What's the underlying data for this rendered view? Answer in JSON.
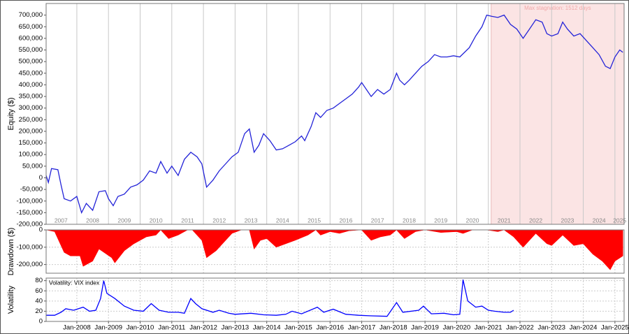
{
  "chart_data": [
    {
      "type": "line",
      "y_label": "Equity ($)",
      "color": "#2323d8",
      "xlim": [
        2007.03,
        2025.29
      ],
      "ylim": [
        -200000,
        750000
      ],
      "highlight": {
        "xlim": [
          2021.09,
          2025.29
        ],
        "label": "Max stagnation: 1512 days",
        "color": "#fbe4e4"
      },
      "xticks": [
        {
          "value": 2007.5,
          "label": "2007"
        },
        {
          "value": 2008.5,
          "label": "2008"
        },
        {
          "value": 2009.5,
          "label": "2009"
        },
        {
          "value": 2010.5,
          "label": "2010"
        },
        {
          "value": 2011.5,
          "label": "2011"
        },
        {
          "value": 2012.5,
          "label": "2012"
        },
        {
          "value": 2013.5,
          "label": "2013"
        },
        {
          "value": 2014.5,
          "label": "2014"
        },
        {
          "value": 2015.5,
          "label": "2015"
        },
        {
          "value": 2016.5,
          "label": "2016"
        },
        {
          "value": 2017.5,
          "label": "2017"
        },
        {
          "value": 2018.5,
          "label": "2018"
        },
        {
          "value": 2019.5,
          "label": "2019"
        },
        {
          "value": 2020.5,
          "label": "2020"
        },
        {
          "value": 2021.5,
          "label": "2021"
        },
        {
          "value": 2022.5,
          "label": "2022"
        },
        {
          "value": 2023.5,
          "label": "2023"
        },
        {
          "value": 2024.5,
          "label": "2024"
        },
        {
          "value": 2025.15,
          "label": "2025"
        }
      ],
      "yticks": [
        {
          "value": -200000,
          "label": "-200,000"
        },
        {
          "value": -150000,
          "label": "-150,000"
        },
        {
          "value": -100000,
          "label": "-100,000"
        },
        {
          "value": -50000,
          "label": "-50,000"
        },
        0,
        {
          "value": 50000,
          "label": "50,000"
        },
        {
          "value": 100000,
          "label": "100,000"
        },
        {
          "value": 150000,
          "label": "150,000"
        },
        {
          "value": 200000,
          "label": "200,000"
        },
        {
          "value": 250000,
          "label": "250,000"
        },
        {
          "value": 300000,
          "label": "300,000"
        },
        {
          "value": 350000,
          "label": "350,000"
        },
        {
          "value": 400000,
          "label": "400,000"
        },
        {
          "value": 450000,
          "label": "450,000"
        },
        {
          "value": 500000,
          "label": "500,000"
        },
        {
          "value": 550000,
          "label": "550,000"
        },
        {
          "value": 600000,
          "label": "600,000"
        },
        {
          "value": 650000,
          "label": "650,000"
        },
        {
          "value": 700000,
          "label": "700,000"
        }
      ],
      "x": [
        2007.03,
        2007.1,
        2007.2,
        2007.4,
        2007.5,
        2007.6,
        2007.8,
        2008.0,
        2008.15,
        2008.3,
        2008.5,
        2008.7,
        2008.9,
        2009.0,
        2009.15,
        2009.3,
        2009.5,
        2009.7,
        2009.9,
        2010.1,
        2010.3,
        2010.5,
        2010.65,
        2010.85,
        2011.0,
        2011.2,
        2011.4,
        2011.6,
        2011.8,
        2011.95,
        2012.1,
        2012.3,
        2012.5,
        2012.7,
        2012.9,
        2013.1,
        2013.3,
        2013.45,
        2013.6,
        2013.75,
        2013.9,
        2014.1,
        2014.3,
        2014.5,
        2014.7,
        2014.9,
        2015.1,
        2015.2,
        2015.4,
        2015.55,
        2015.7,
        2015.9,
        2016.1,
        2016.3,
        2016.5,
        2016.7,
        2016.9,
        2017.0,
        2017.15,
        2017.3,
        2017.5,
        2017.7,
        2017.9,
        2018.1,
        2018.2,
        2018.35,
        2018.5,
        2018.7,
        2018.9,
        2019.1,
        2019.3,
        2019.5,
        2019.7,
        2019.9,
        2020.1,
        2020.25,
        2020.4,
        2020.6,
        2020.8,
        2020.95,
        2021.1,
        2021.3,
        2021.5,
        2021.7,
        2021.9,
        2022.1,
        2022.3,
        2022.5,
        2022.7,
        2022.85,
        2023.0,
        2023.2,
        2023.35,
        2023.5,
        2023.7,
        2023.9,
        2024.1,
        2024.3,
        2024.5,
        2024.7,
        2024.85,
        2025.0,
        2025.15,
        2025.25
      ],
      "values": [
        10000,
        -20000,
        40000,
        35000,
        -30000,
        -90000,
        -100000,
        -80000,
        -150000,
        -110000,
        -140000,
        -60000,
        -55000,
        -90000,
        -120000,
        -80000,
        -70000,
        -40000,
        -30000,
        -10000,
        30000,
        20000,
        70000,
        20000,
        50000,
        10000,
        80000,
        110000,
        90000,
        60000,
        -40000,
        -10000,
        30000,
        60000,
        90000,
        110000,
        190000,
        210000,
        110000,
        140000,
        190000,
        160000,
        120000,
        125000,
        140000,
        155000,
        180000,
        160000,
        220000,
        280000,
        260000,
        290000,
        300000,
        320000,
        340000,
        360000,
        390000,
        410000,
        380000,
        350000,
        380000,
        360000,
        380000,
        450000,
        420000,
        400000,
        420000,
        450000,
        480000,
        500000,
        530000,
        520000,
        520000,
        525000,
        520000,
        540000,
        560000,
        610000,
        650000,
        700000,
        695000,
        690000,
        700000,
        660000,
        640000,
        600000,
        640000,
        680000,
        670000,
        620000,
        610000,
        620000,
        670000,
        640000,
        610000,
        620000,
        590000,
        560000,
        530000,
        480000,
        470000,
        520000,
        550000,
        540000
      ]
    },
    {
      "type": "area",
      "y_label": "Drawdown ($)",
      "color": "#ff0000",
      "xlim": [
        2007.03,
        2025.29
      ],
      "ylim": [
        -250000,
        0
      ],
      "grid": true,
      "yticks": [
        {
          "value": -200000,
          "label": "-200,000"
        },
        {
          "value": -100000,
          "label": "-100,000"
        },
        0
      ],
      "x": [
        2007.03,
        2007.3,
        2007.6,
        2007.8,
        2008.1,
        2008.2,
        2008.5,
        2008.7,
        2009.1,
        2009.2,
        2009.5,
        2009.8,
        2010.2,
        2010.5,
        2010.65,
        2010.9,
        2011.2,
        2011.5,
        2011.65,
        2011.95,
        2012.1,
        2012.4,
        2012.7,
        2012.9,
        2013.2,
        2013.45,
        2013.6,
        2013.8,
        2014.0,
        2014.3,
        2014.6,
        2014.9,
        2015.3,
        2015.55,
        2015.7,
        2016.0,
        2016.3,
        2016.6,
        2017.0,
        2017.3,
        2017.6,
        2017.9,
        2018.1,
        2018.35,
        2018.7,
        2019.0,
        2019.5,
        2020.0,
        2020.2,
        2020.5,
        2020.95,
        2021.3,
        2021.5,
        2021.8,
        2022.1,
        2022.5,
        2022.85,
        2023.0,
        2023.35,
        2023.7,
        2024.0,
        2024.3,
        2024.6,
        2024.85,
        2025.0,
        2025.25
      ],
      "values": [
        0,
        -10000,
        -130000,
        -150000,
        -150000,
        -210000,
        -180000,
        -110000,
        -160000,
        -190000,
        -120000,
        -80000,
        -40000,
        -30000,
        0,
        -50000,
        -30000,
        0,
        0,
        -60000,
        -160000,
        -120000,
        -60000,
        -20000,
        0,
        0,
        -110000,
        -60000,
        -50000,
        -100000,
        -80000,
        -60000,
        -30000,
        0,
        -30000,
        -10000,
        -20000,
        -5000,
        0,
        -60000,
        -40000,
        -30000,
        0,
        -50000,
        -10000,
        0,
        -15000,
        -10000,
        -20000,
        0,
        0,
        -10000,
        0,
        -40000,
        -100000,
        -20000,
        -80000,
        -90000,
        -30000,
        -90000,
        -80000,
        -140000,
        -180000,
        -230000,
        -180000,
        -150000
      ]
    },
    {
      "type": "line",
      "y_label": "Volatility",
      "annotation": "Volatility: VIX index",
      "color": "#0000ff",
      "xlim": [
        2007.03,
        2025.29
      ],
      "ylim": [
        0,
        85
      ],
      "grid": true,
      "yticks": [
        0,
        20,
        40,
        60,
        80
      ],
      "xticks": [
        {
          "value": 2008,
          "label": "Jan-2008"
        },
        {
          "value": 2009,
          "label": "Jan-2009"
        },
        {
          "value": 2010,
          "label": "Jan-2010"
        },
        {
          "value": 2011,
          "label": "Jan-2011"
        },
        {
          "value": 2012,
          "label": "Jan-2012"
        },
        {
          "value": 2013,
          "label": "Jan-2013"
        },
        {
          "value": 2014,
          "label": "Jan-2014"
        },
        {
          "value": 2015,
          "label": "Jan-2015"
        },
        {
          "value": 2016,
          "label": "Jan-2016"
        },
        {
          "value": 2017,
          "label": "Jan-2017"
        },
        {
          "value": 2018,
          "label": "Jan-2018"
        },
        {
          "value": 2019,
          "label": "Jan-2019"
        },
        {
          "value": 2020,
          "label": "Jan-2020"
        },
        {
          "value": 2021,
          "label": "Jan-2021"
        },
        {
          "value": 2022,
          "label": "Jan-2022"
        },
        {
          "value": 2023,
          "label": "Jan-2023"
        },
        {
          "value": 2024,
          "label": "Jan-2024"
        },
        {
          "value": 2025,
          "label": "Jan-2025"
        }
      ],
      "x": [
        2007.03,
        2007.3,
        2007.5,
        2007.65,
        2007.9,
        2008.2,
        2008.4,
        2008.6,
        2008.75,
        2008.85,
        2008.95,
        2009.2,
        2009.5,
        2009.8,
        2010.1,
        2010.35,
        2010.6,
        2010.9,
        2011.2,
        2011.4,
        2011.6,
        2011.75,
        2011.95,
        2012.3,
        2012.5,
        2012.8,
        2013.0,
        2013.5,
        2013.9,
        2014.3,
        2014.6,
        2014.8,
        2015.1,
        2015.6,
        2015.8,
        2016.1,
        2016.5,
        2016.9,
        2017.3,
        2017.8,
        2018.1,
        2018.3,
        2018.8,
        2018.95,
        2019.2,
        2019.6,
        2019.9,
        2020.1,
        2020.2,
        2020.35,
        2020.6,
        2020.8,
        2021.0,
        2021.2,
        2021.5,
        2021.7,
        2021.8
      ],
      "values": [
        12,
        12,
        18,
        25,
        22,
        28,
        20,
        22,
        45,
        80,
        55,
        45,
        30,
        22,
        20,
        35,
        22,
        18,
        18,
        16,
        45,
        35,
        25,
        18,
        22,
        16,
        14,
        16,
        13,
        12,
        14,
        20,
        15,
        28,
        18,
        24,
        14,
        12,
        11,
        10,
        37,
        18,
        22,
        30,
        15,
        16,
        13,
        14,
        82,
        40,
        28,
        30,
        22,
        20,
        18,
        18,
        22
      ]
    }
  ]
}
